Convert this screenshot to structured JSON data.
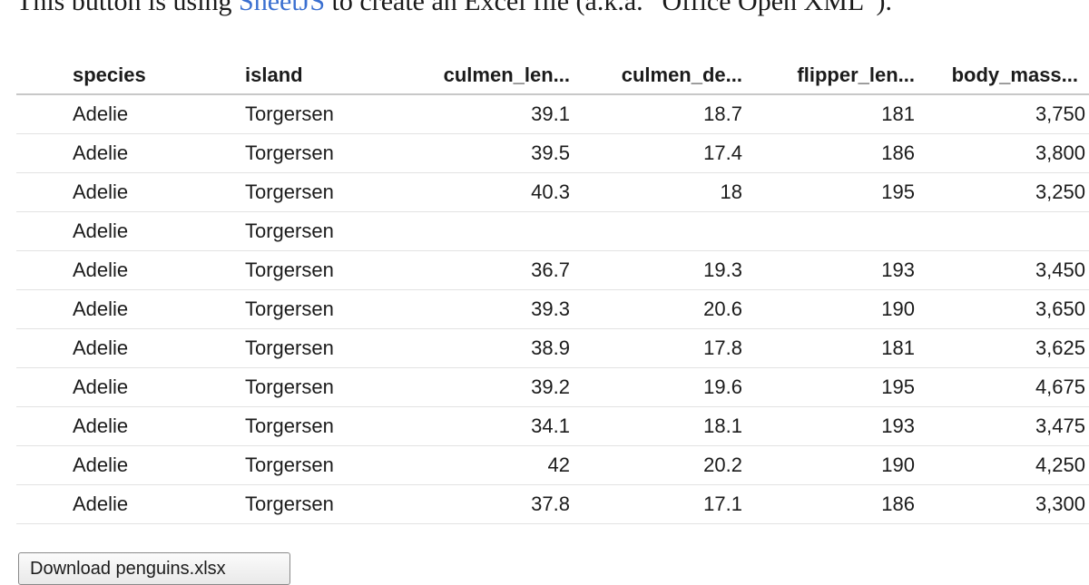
{
  "intro": {
    "prefix": "This button is using ",
    "link_text": "SheetJS",
    "suffix": " to create an Excel file (a.k.a. “Office Open XML”)."
  },
  "table": {
    "headers": [
      "species",
      "island",
      "culmen_len...",
      "culmen_de...",
      "flipper_len...",
      "body_mass..."
    ],
    "rows": [
      [
        "Adelie",
        "Torgersen",
        "39.1",
        "18.7",
        "181",
        "3,750"
      ],
      [
        "Adelie",
        "Torgersen",
        "39.5",
        "17.4",
        "186",
        "3,800"
      ],
      [
        "Adelie",
        "Torgersen",
        "40.3",
        "18",
        "195",
        "3,250"
      ],
      [
        "Adelie",
        "Torgersen",
        "",
        "",
        "",
        ""
      ],
      [
        "Adelie",
        "Torgersen",
        "36.7",
        "19.3",
        "193",
        "3,450"
      ],
      [
        "Adelie",
        "Torgersen",
        "39.3",
        "20.6",
        "190",
        "3,650"
      ],
      [
        "Adelie",
        "Torgersen",
        "38.9",
        "17.8",
        "181",
        "3,625"
      ],
      [
        "Adelie",
        "Torgersen",
        "39.2",
        "19.6",
        "195",
        "4,675"
      ],
      [
        "Adelie",
        "Torgersen",
        "34.1",
        "18.1",
        "193",
        "3,475"
      ],
      [
        "Adelie",
        "Torgersen",
        "42",
        "20.2",
        "190",
        "4,250"
      ],
      [
        "Adelie",
        "Torgersen",
        "37.8",
        "17.1",
        "186",
        "3,300"
      ]
    ]
  },
  "download_button": {
    "label": "Download penguins.xlsx"
  },
  "colors": {
    "link": "#3a6fd0",
    "text": "#1b1b1b",
    "row_border": "#e2e2e2",
    "header_border": "#c8c8c8"
  }
}
